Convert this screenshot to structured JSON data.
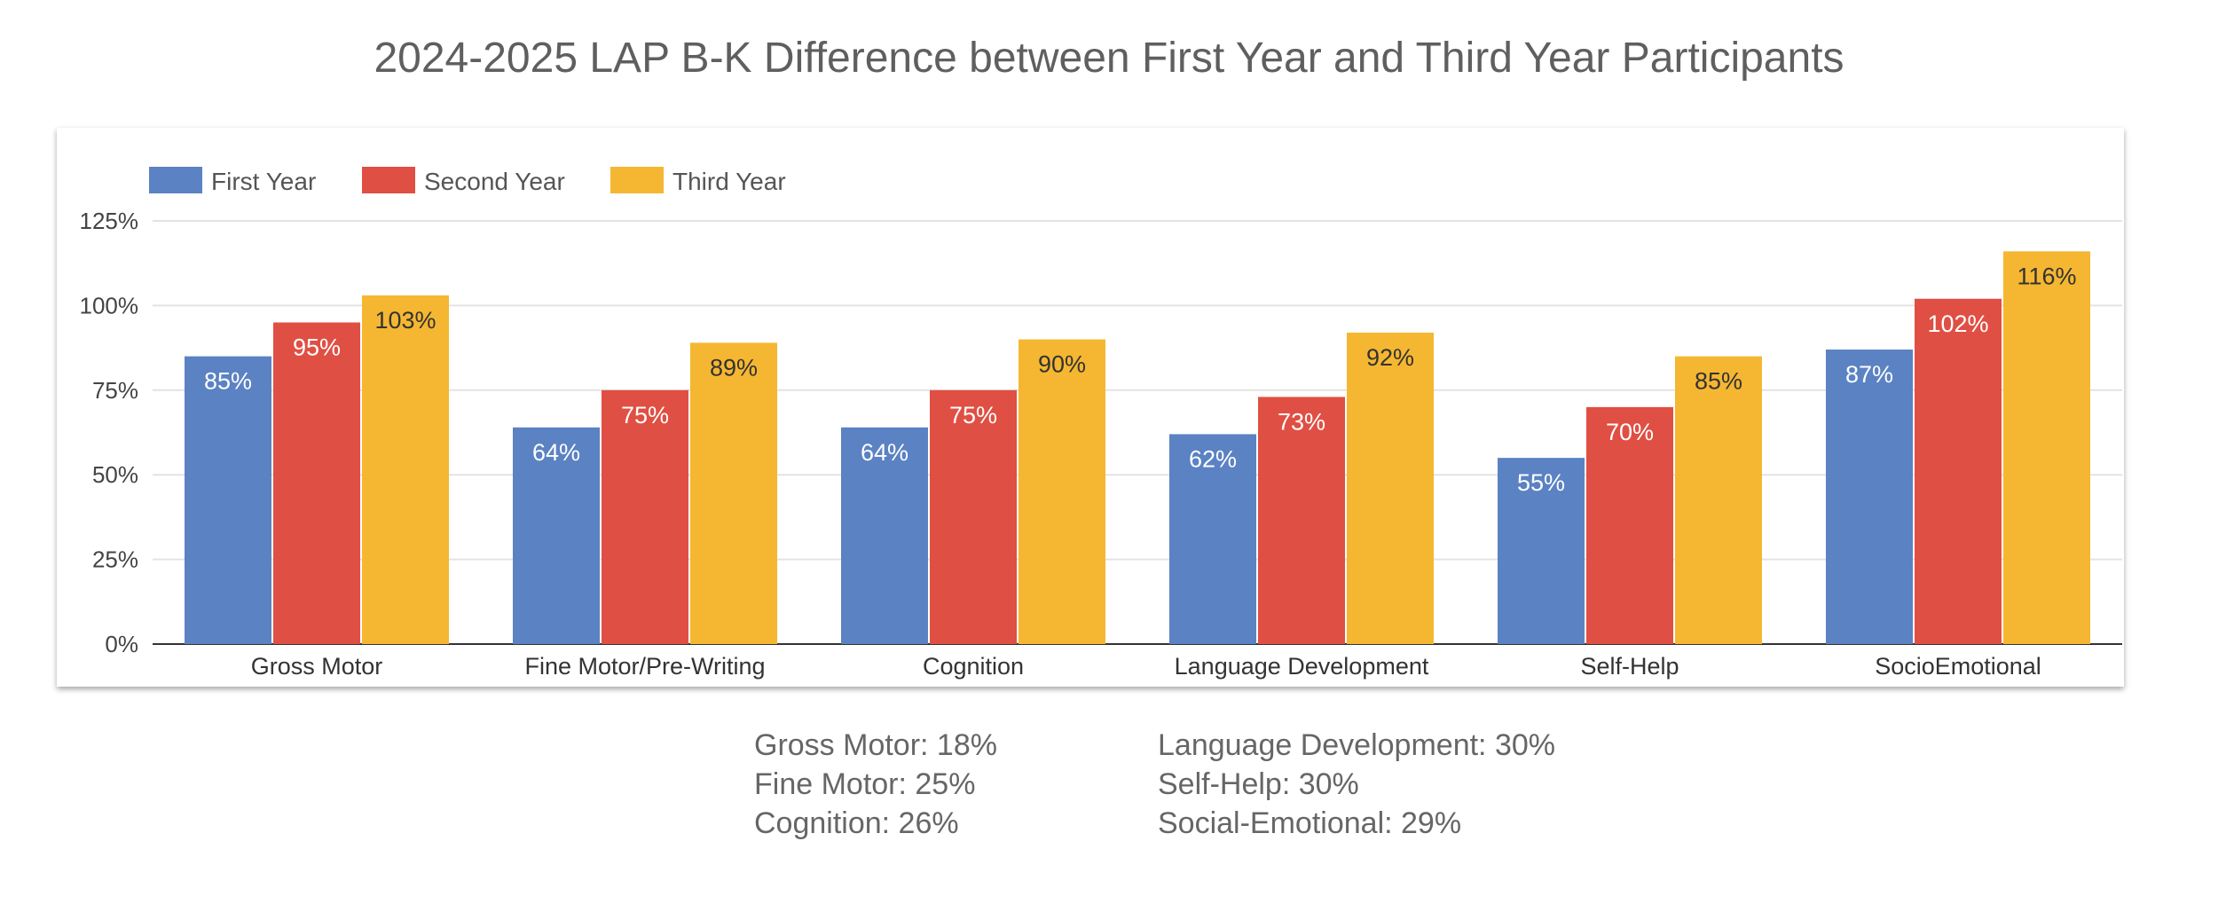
{
  "title": "2024-2025 LAP B-K Difference between First Year and Third Year Participants",
  "chart_data": {
    "type": "bar",
    "categories": [
      "Gross Motor",
      "Fine Motor/Pre-Writing",
      "Cognition",
      "Language Development",
      "Self-Help",
      "SocioEmotional"
    ],
    "series": [
      {
        "name": "First Year",
        "color": "#5b82c3",
        "values": [
          85,
          64,
          64,
          62,
          55,
          87
        ],
        "labels": [
          "85%",
          "64%",
          "64%",
          "62%",
          "55%",
          "87%"
        ]
      },
      {
        "name": "Second Year",
        "color": "#e04f43",
        "values": [
          95,
          75,
          75,
          73,
          70,
          102
        ],
        "labels": [
          "95%",
          "75%",
          "75%",
          "73%",
          "70%",
          "102%"
        ]
      },
      {
        "name": "Third Year",
        "color": "#f5b731",
        "values": [
          103,
          89,
          90,
          92,
          85,
          116
        ],
        "labels": [
          "103%",
          "89%",
          "90%",
          "92%",
          "85%",
          "116%"
        ]
      }
    ],
    "yticks": [
      "0%",
      "25%",
      "50%",
      "75%",
      "100%",
      "125%"
    ],
    "ylim": [
      0,
      125
    ],
    "y_unit": "%",
    "legend": "top-left",
    "grid": true
  },
  "notes": {
    "left": [
      "Gross Motor: 18%",
      "Fine Motor: 25%",
      "Cognition: 26%"
    ],
    "right": [
      "Language Development: 30%",
      "Self-Help: 30%",
      "Social-Emotional: 29%"
    ]
  }
}
